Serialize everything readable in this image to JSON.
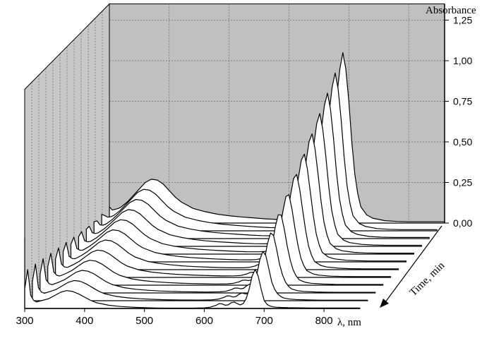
{
  "chart_data": {
    "type": "line",
    "subtype": "3d-waterfall",
    "title": "",
    "xlabel": "λ, nm",
    "ylabel": "Absorbance",
    "zlabel": "Time, min",
    "x_ticks": [
      "300",
      "400",
      "500",
      "600",
      "700",
      "800"
    ],
    "y_ticks": [
      "0,00",
      "0,25",
      "0,50",
      "0,75",
      "1,00",
      "1,25"
    ],
    "xlim": [
      300,
      860
    ],
    "ylim": [
      0,
      1.35
    ],
    "grid": true,
    "back_wall_color": "#c0c0c0",
    "line_color": "#000000",
    "series_count": 12,
    "series_shape": {
      "x": [
        300,
        305,
        310,
        315,
        320,
        330,
        340,
        350,
        360,
        370,
        380,
        390,
        400,
        410,
        420,
        440,
        460,
        480,
        500,
        520,
        540,
        560,
        580,
        600,
        610,
        620,
        625,
        630,
        635,
        640,
        645,
        650,
        655,
        660,
        665,
        670,
        675,
        680,
        685,
        690,
        695,
        700,
        705,
        710,
        715,
        720,
        730,
        740,
        760,
        780,
        800,
        820,
        840,
        860
      ],
      "first_series_values": [
        0.12,
        0.24,
        0.08,
        0.05,
        0.04,
        0.05,
        0.06,
        0.08,
        0.1,
        0.11,
        0.105,
        0.09,
        0.07,
        0.05,
        0.035,
        0.02,
        0.012,
        0.008,
        0.005,
        0.003,
        0.002,
        0.002,
        0.002,
        0.004,
        0.008,
        0.02,
        0.03,
        0.028,
        0.02,
        0.022,
        0.035,
        0.04,
        0.03,
        0.022,
        0.03,
        0.06,
        0.12,
        0.2,
        0.24,
        0.2,
        0.12,
        0.05,
        0.025,
        0.015,
        0.01,
        0.008,
        0.006,
        0.005,
        0.004,
        0.003,
        0.003,
        0.003,
        0.003,
        0.003
      ],
      "last_series_values": [
        0.1,
        0.08,
        0.085,
        0.09,
        0.1,
        0.13,
        0.17,
        0.21,
        0.25,
        0.27,
        0.265,
        0.24,
        0.2,
        0.16,
        0.13,
        0.09,
        0.07,
        0.055,
        0.045,
        0.038,
        0.032,
        0.026,
        0.022,
        0.02,
        0.02,
        0.025,
        0.03,
        0.04,
        0.05,
        0.06,
        0.085,
        0.12,
        0.17,
        0.24,
        0.33,
        0.45,
        0.6,
        0.78,
        0.95,
        1.05,
        0.95,
        0.75,
        0.5,
        0.3,
        0.18,
        0.1,
        0.05,
        0.03,
        0.015,
        0.01,
        0.008,
        0.008,
        0.008,
        0.008
      ]
    }
  }
}
